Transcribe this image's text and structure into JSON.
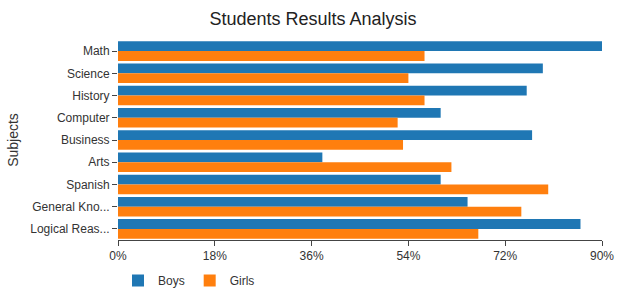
{
  "chart_data": {
    "type": "bar",
    "orientation": "horizontal",
    "title": "Students Results Analysis",
    "y_label": "Subjects",
    "categories": [
      "Math",
      "Science",
      "History",
      "Computer",
      "Business",
      "Arts",
      "Spanish",
      "General Kno...",
      "Logical Reas..."
    ],
    "series": [
      {
        "name": "Boys",
        "color": "#1f77b4",
        "values": [
          90,
          79,
          76,
          60,
          77,
          38,
          60,
          65,
          86
        ]
      },
      {
        "name": "Girls",
        "color": "#ff7f0e",
        "values": [
          57,
          54,
          57,
          52,
          53,
          62,
          80,
          75,
          67
        ]
      }
    ],
    "xlim": [
      0,
      90
    ],
    "xticks": [
      {
        "value": 0,
        "label": "0%"
      },
      {
        "value": 18,
        "label": "18%"
      },
      {
        "value": 36,
        "label": "36%"
      },
      {
        "value": 54,
        "label": "54%"
      },
      {
        "value": 72,
        "label": "72%"
      },
      {
        "value": 90,
        "label": "90%"
      }
    ],
    "grid": false,
    "legend": "bottom"
  }
}
